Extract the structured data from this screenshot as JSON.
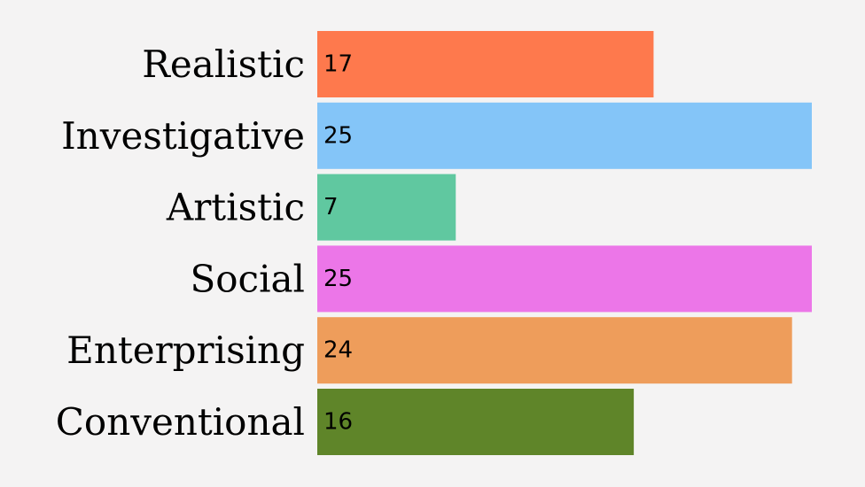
{
  "chart_data": {
    "type": "bar",
    "orientation": "horizontal",
    "title": "",
    "xlabel": "",
    "ylabel": "",
    "categories": [
      "Realistic",
      "Investigative",
      "Artistic",
      "Social",
      "Enterprising",
      "Conventional"
    ],
    "values": [
      17,
      25,
      7,
      25,
      24,
      16
    ],
    "xlim": [
      0,
      25
    ],
    "colors": [
      "#fe794d",
      "#84c5f8",
      "#60c8a0",
      "#ec76e8",
      "#ee9d5b",
      "#5f8529"
    ],
    "grid": false,
    "legend": "none",
    "value_labels": true
  }
}
